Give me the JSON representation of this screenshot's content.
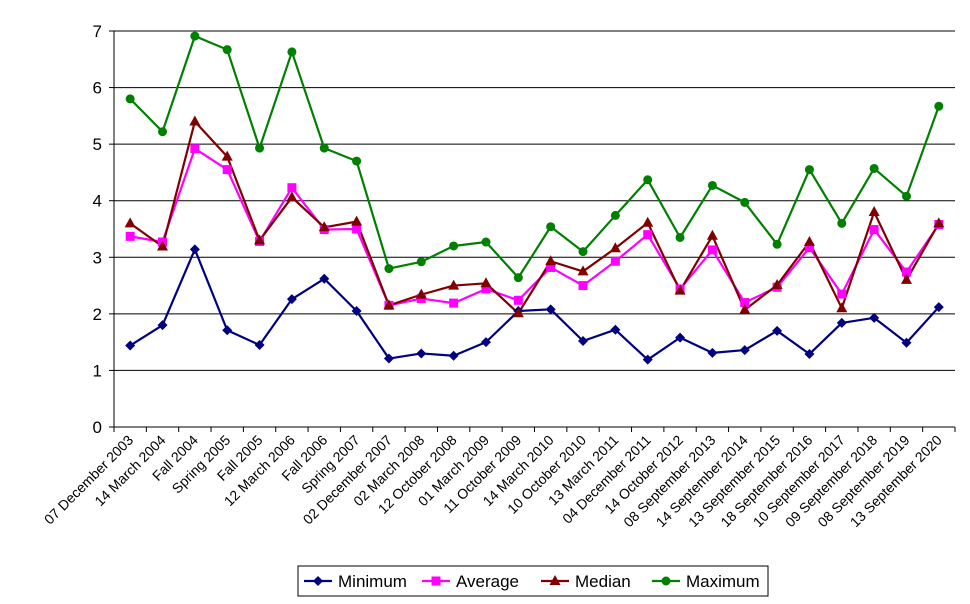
{
  "chart_data": {
    "type": "line",
    "title": "",
    "xlabel": "",
    "ylabel": "",
    "ylim": [
      0,
      7
    ],
    "yticks": [
      "0",
      "1",
      "2",
      "3",
      "4",
      "5",
      "6",
      "7"
    ],
    "grid": true,
    "legend_position": "bottom",
    "categories": [
      "07 December 2003",
      "14 March 2004",
      "Fall 2004",
      "Spring 2005",
      "Fall 2005",
      "12 March 2006",
      "Fall 2006",
      "Spring 2007",
      "02 December 2007",
      "02 March 2008",
      "12 October 2008",
      "01 March 2009",
      "11 October 2009",
      "14 March 2010",
      "10 October 2010",
      "13 March 2011",
      "04 December 2011",
      "14 October 2012",
      "08 September 2013",
      "14 September 2014",
      "13 September 2015",
      "18 September 2016",
      "10 September 2017",
      "09 September 2018",
      "08 September 2019",
      "13 September 2020"
    ],
    "x_tick_labels": [
      "07 December 2003",
      "14 March 2004",
      "Fall 2004",
      "Spring 2005",
      "Fall 2005",
      "12 March 2006",
      "Fall 2006",
      "Spring 2007",
      "02 December 2007",
      "02 March 2008",
      "12 October 2008",
      "01 March 2009",
      "11 October 2009",
      "14 March 2010",
      "10 October 2010",
      "13 March 2011",
      "04 December 2011",
      "14 October 2012",
      "08 September 2013",
      "14 September 2014",
      "13 September 2015",
      "18 September 2016",
      "10 September 2017",
      "09 September 2018",
      "08 September 2019",
      "13 September 2020"
    ],
    "series": [
      {
        "name": "Minimum",
        "color": "#000080",
        "marker": "diamond",
        "values": [
          1.44,
          1.8,
          3.14,
          1.71,
          1.45,
          2.26,
          2.62,
          2.05,
          1.21,
          1.3,
          1.26,
          1.5,
          2.05,
          2.08,
          1.52,
          1.72,
          1.19,
          1.58,
          1.31,
          1.36,
          1.7,
          1.29,
          1.84,
          1.93,
          1.49,
          2.12
        ]
      },
      {
        "name": "Average",
        "color": "#FF00FF",
        "marker": "square",
        "values": [
          3.37,
          3.27,
          4.92,
          4.55,
          3.28,
          4.23,
          3.49,
          3.5,
          2.15,
          2.27,
          2.19,
          2.44,
          2.24,
          2.82,
          2.5,
          2.93,
          3.4,
          2.44,
          3.13,
          2.2,
          2.47,
          3.17,
          2.35,
          3.49,
          2.74,
          3.58
        ]
      },
      {
        "name": "Median",
        "color": "#800000",
        "marker": "triangle",
        "values": [
          3.6,
          3.19,
          5.4,
          4.78,
          3.3,
          4.06,
          3.53,
          3.63,
          2.15,
          2.34,
          2.5,
          2.54,
          2.01,
          2.93,
          2.75,
          3.16,
          3.61,
          2.41,
          3.38,
          2.07,
          2.51,
          3.27,
          2.1,
          3.8,
          2.6,
          3.6
        ]
      },
      {
        "name": "Maximum",
        "color": "#008000",
        "marker": "circle",
        "values": [
          5.8,
          5.22,
          6.91,
          6.67,
          4.93,
          6.63,
          4.93,
          4.7,
          2.8,
          2.92,
          3.2,
          3.27,
          2.64,
          3.54,
          3.1,
          3.74,
          4.37,
          3.35,
          4.27,
          3.97,
          3.23,
          4.55,
          3.6,
          4.57,
          4.08,
          5.67
        ]
      }
    ]
  }
}
